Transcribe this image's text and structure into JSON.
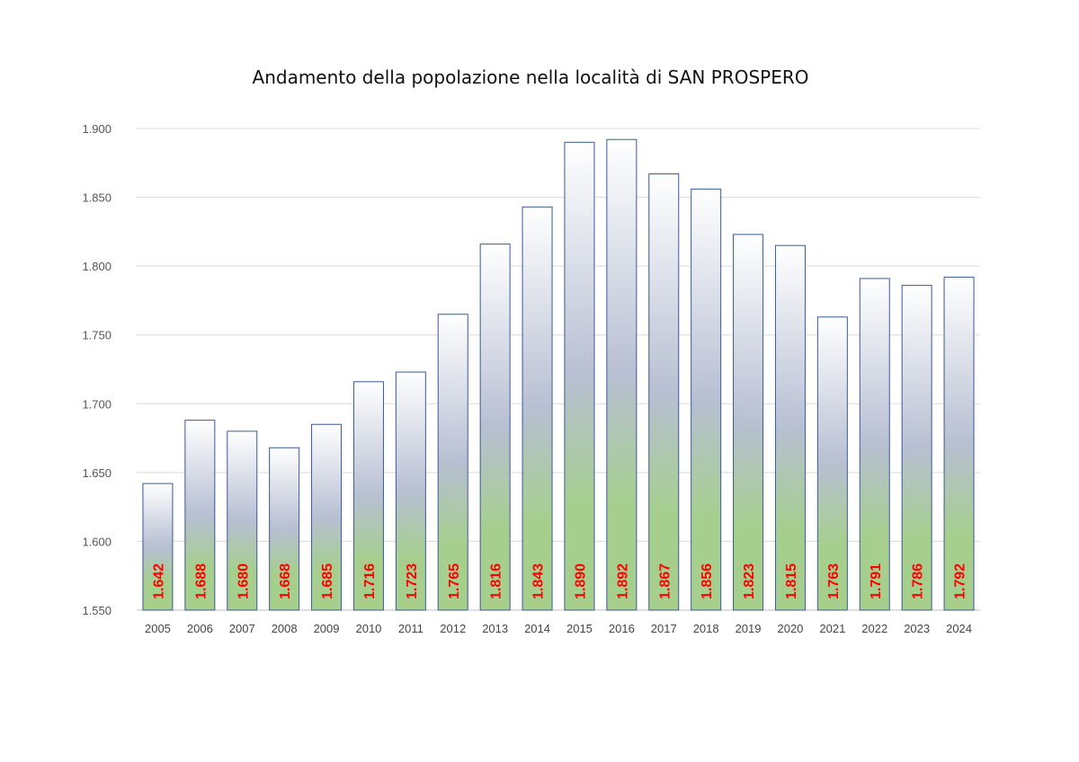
{
  "chart_data": {
    "type": "bar",
    "title": "Andamento della popolazione nella località di SAN PROSPERO",
    "xlabel": "",
    "ylabel": "",
    "categories": [
      "2005",
      "2006",
      "2007",
      "2008",
      "2009",
      "2010",
      "2011",
      "2012",
      "2013",
      "2014",
      "2015",
      "2016",
      "2017",
      "2018",
      "2019",
      "2020",
      "2021",
      "2022",
      "2023",
      "2024"
    ],
    "values": [
      1642,
      1688,
      1680,
      1668,
      1685,
      1716,
      1723,
      1765,
      1816,
      1843,
      1890,
      1892,
      1867,
      1856,
      1823,
      1815,
      1763,
      1791,
      1786,
      1792
    ],
    "value_labels": [
      "1.642",
      "1.688",
      "1.680",
      "1.668",
      "1.685",
      "1.716",
      "1.723",
      "1.765",
      "1.816",
      "1.843",
      "1.890",
      "1.892",
      "1.867",
      "1.856",
      "1.823",
      "1.815",
      "1.763",
      "1.791",
      "1.786",
      "1.792"
    ],
    "ylim": [
      1550,
      1900
    ],
    "yticks": [
      1550,
      1600,
      1650,
      1700,
      1750,
      1800,
      1850,
      1900
    ],
    "ytick_labels": [
      "1.550",
      "1.600",
      "1.650",
      "1.700",
      "1.750",
      "1.800",
      "1.850",
      "1.900"
    ],
    "grid": true,
    "legend": "none",
    "colors": {
      "bar_outline": "#3a5a98",
      "bar_top": "#ffffff",
      "bar_mid": "#b7bfd2",
      "bar_bottom": "#a6cf8e",
      "data_label": "#ff0000",
      "grid": "#d9d9d9"
    }
  }
}
